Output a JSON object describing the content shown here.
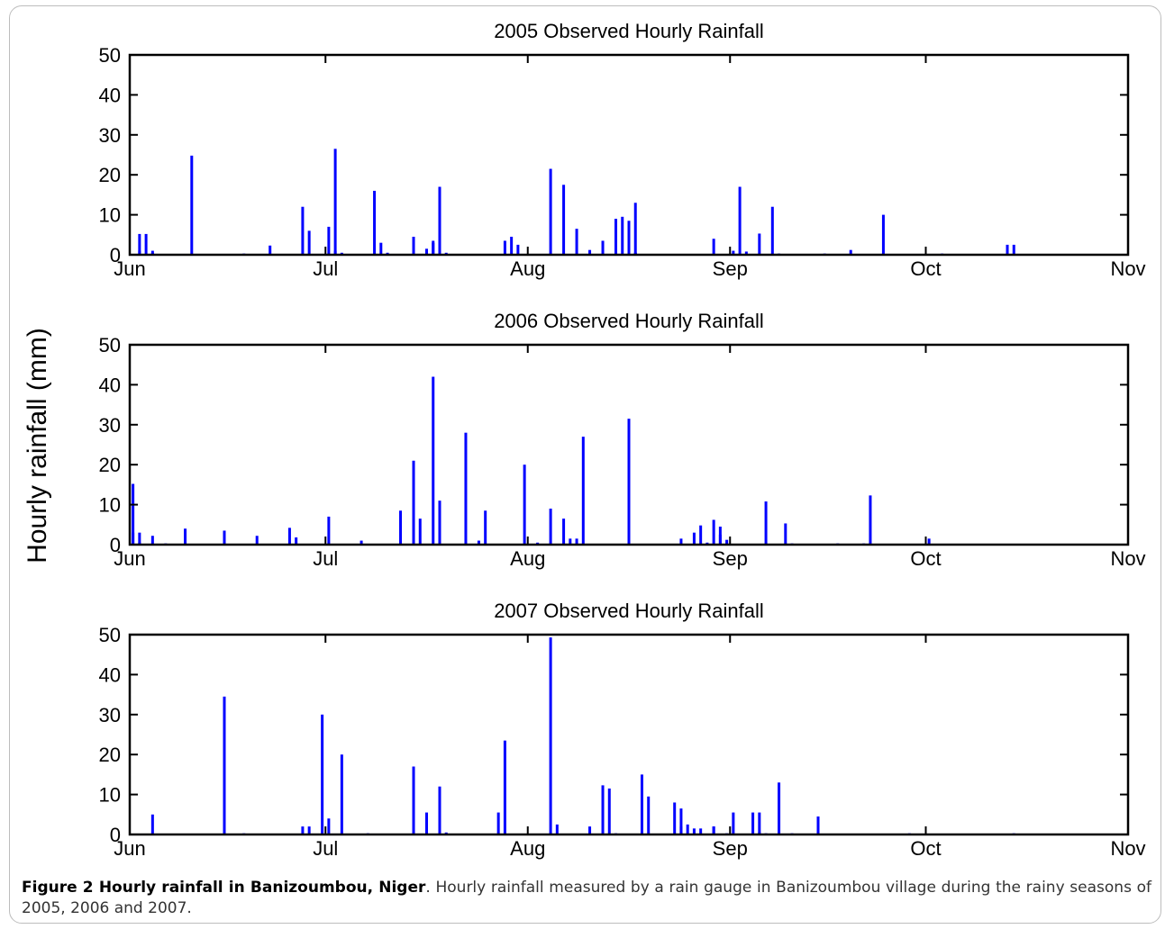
{
  "chart_data": [
    {
      "type": "bar",
      "title": "2005 Observed Hourly Rainfall",
      "xlabel": "",
      "ylabel": "Hourly rainfall (mm)",
      "ylim": [
        0,
        50
      ],
      "yticks": [
        0,
        10,
        20,
        30,
        40,
        50
      ],
      "xlim": [
        "Jun 1",
        "Nov 1"
      ],
      "xticks": [
        "Jun",
        "Jul",
        "Aug",
        "Sep",
        "Oct",
        "Nov"
      ],
      "color": "#0000ff",
      "series": [
        {
          "x": [
            "2005-06-02",
            "2005-06-02",
            "2005-06-03",
            "2005-06-04",
            "2005-06-04",
            "2005-06-10",
            "2005-06-18",
            "2005-06-22",
            "2005-06-27",
            "2005-06-28",
            "2005-07-01",
            "2005-07-02",
            "2005-07-02",
            "2005-07-03",
            "2005-07-08",
            "2005-07-09",
            "2005-07-10",
            "2005-07-14",
            "2005-07-16",
            "2005-07-17",
            "2005-07-17",
            "2005-07-18",
            "2005-07-19",
            "2005-07-28",
            "2005-07-29",
            "2005-07-30",
            "2005-08-04",
            "2005-08-06",
            "2005-08-08",
            "2005-08-10",
            "2005-08-12",
            "2005-08-14",
            "2005-08-15",
            "2005-08-16",
            "2005-08-16",
            "2005-08-16",
            "2005-08-17",
            "2005-08-17",
            "2005-08-17",
            "2005-08-29",
            "2005-09-01",
            "2005-09-02",
            "2005-09-03",
            "2005-09-05",
            "2005-09-07",
            "2005-09-08",
            "2005-09-15",
            "2005-09-19",
            "2005-09-24",
            "2005-10-03",
            "2005-10-13",
            "2005-10-14"
          ],
          "values": [
            1,
            5.2,
            5.2,
            1,
            0.5,
            24.8,
            0.3,
            2.3,
            12,
            6,
            7,
            26.5,
            1,
            0.5,
            16,
            3,
            0.5,
            4.5,
            1.5,
            3.5,
            3,
            17,
            0.5,
            3.5,
            4.5,
            2.5,
            21.5,
            17.5,
            6.5,
            1.2,
            3.5,
            9,
            9.5,
            4.5,
            4.5,
            8.5,
            13,
            0.5,
            0.5,
            4,
            1,
            17,
            0.8,
            5.3,
            12,
            0.3,
            0.3,
            1.2,
            10,
            0.3,
            2.5,
            2.5
          ]
        }
      ]
    },
    {
      "type": "bar",
      "title": "2006 Observed Hourly Rainfall",
      "xlabel": "",
      "ylabel": "Hourly rainfall (mm)",
      "ylim": [
        0,
        50
      ],
      "yticks": [
        0,
        10,
        20,
        30,
        40,
        50
      ],
      "xlim": [
        "Jun 1",
        "Nov 1"
      ],
      "xticks": [
        "Jun",
        "Jul",
        "Aug",
        "Sep",
        "Oct",
        "Nov"
      ],
      "color": "#0000ff",
      "series": [
        {
          "x": [
            "2006-06-01",
            "2006-06-01",
            "2006-06-02",
            "2006-06-02",
            "2006-06-04",
            "2006-06-06",
            "2006-06-09",
            "2006-06-15",
            "2006-06-15",
            "2006-06-20",
            "2006-06-25",
            "2006-06-26",
            "2006-07-01",
            "2006-07-01",
            "2006-07-06",
            "2006-07-12",
            "2006-07-14",
            "2006-07-15",
            "2006-07-17",
            "2006-07-18",
            "2006-07-22",
            "2006-07-24",
            "2006-07-25",
            "2006-07-31",
            "2006-08-02",
            "2006-08-04",
            "2006-08-06",
            "2006-08-07",
            "2006-08-08",
            "2006-08-09",
            "2006-08-16",
            "2006-08-16",
            "2006-08-24",
            "2006-08-26",
            "2006-08-27",
            "2006-08-28",
            "2006-08-29",
            "2006-08-30",
            "2006-08-30",
            "2006-08-31",
            "2006-09-06",
            "2006-09-09",
            "2006-09-10",
            "2006-09-17",
            "2006-09-21",
            "2006-09-22",
            "2006-10-01"
          ],
          "values": [
            15.2,
            3,
            3,
            0.5,
            2.2,
            0.3,
            4,
            3.5,
            0.5,
            2.2,
            4.2,
            1.8,
            0.3,
            7,
            1,
            8.5,
            21,
            6.5,
            42,
            11,
            28,
            1,
            8.5,
            20,
            0.5,
            9,
            6.5,
            1.5,
            1.5,
            27,
            31.5,
            0.5,
            1.5,
            3,
            4.8,
            0.5,
            6.2,
            4.5,
            2.5,
            1.2,
            10.8,
            5.3,
            0.3,
            0.3,
            0.3,
            12.3,
            1.5
          ]
        }
      ]
    },
    {
      "type": "bar",
      "title": "2007 Observed Hourly Rainfall",
      "xlabel": "",
      "ylabel": "Hourly rainfall (mm)",
      "ylim": [
        0,
        50
      ],
      "yticks": [
        0,
        10,
        20,
        30,
        40,
        50
      ],
      "xlim": [
        "Jun 1",
        "Nov 1"
      ],
      "xticks": [
        "Jun",
        "Jul",
        "Aug",
        "Sep",
        "Oct",
        "Nov"
      ],
      "color": "#0000ff",
      "series": [
        {
          "x": [
            "2007-06-04",
            "2007-06-15",
            "2007-06-18",
            "2007-06-27",
            "2007-06-28",
            "2007-06-30",
            "2007-07-01",
            "2007-07-03",
            "2007-07-07",
            "2007-07-14",
            "2007-07-16",
            "2007-07-18",
            "2007-07-19",
            "2007-07-27",
            "2007-07-28",
            "2007-08-04",
            "2007-08-05",
            "2007-08-10",
            "2007-08-12",
            "2007-08-13",
            "2007-08-14",
            "2007-08-18",
            "2007-08-19",
            "2007-08-23",
            "2007-08-24",
            "2007-08-24",
            "2007-08-25",
            "2007-08-26",
            "2007-08-27",
            "2007-08-29",
            "2007-08-29",
            "2007-08-31",
            "2007-09-01",
            "2007-09-04",
            "2007-09-05",
            "2007-09-05",
            "2007-09-06",
            "2007-09-08",
            "2007-09-10",
            "2007-09-14",
            "2007-09-28",
            "2007-10-14"
          ],
          "values": [
            5,
            34.5,
            0.3,
            2,
            2,
            30,
            4,
            20,
            0.3,
            17,
            5.5,
            12,
            0.5,
            5.5,
            23.5,
            49.3,
            2.5,
            2,
            12.3,
            11.5,
            0.3,
            15,
            9.5,
            8,
            6.5,
            2,
            2.5,
            1.5,
            1.5,
            2,
            2,
            0.3,
            5.5,
            5.5,
            5.5,
            0.5,
            0.3,
            13,
            0.3,
            4.5,
            0.3,
            0.3
          ]
        }
      ]
    }
  ],
  "figure": {
    "shared_ylabel": "Hourly rainfall (mm)"
  },
  "caption": {
    "label": "Figure 2 Hourly rainfall in Banizoumbou, Niger",
    "text": ". Hourly rainfall measured by a rain gauge in Banizoumbou village during the rainy seasons of 2005, 2006 and 2007."
  }
}
